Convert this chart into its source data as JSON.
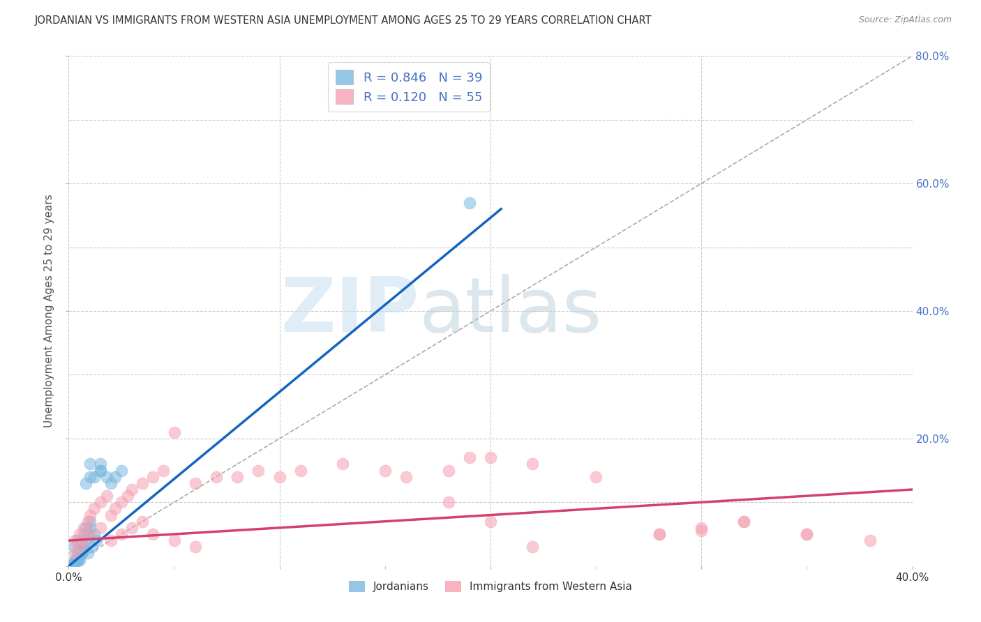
{
  "title": "JORDANIAN VS IMMIGRANTS FROM WESTERN ASIA UNEMPLOYMENT AMONG AGES 25 TO 29 YEARS CORRELATION CHART",
  "source_text": "Source: ZipAtlas.com",
  "ylabel": "Unemployment Among Ages 25 to 29 years",
  "xlim": [
    0.0,
    0.4
  ],
  "ylim": [
    0.0,
    0.8
  ],
  "blue_color": "#7ab8e0",
  "pink_color": "#f5a0b0",
  "blue_line_color": "#1565c0",
  "pink_line_color": "#d44070",
  "diag_color": "#aaaaaa",
  "legend_R_blue": "0.846",
  "legend_N_blue": "39",
  "legend_R_pink": "0.120",
  "legend_N_pink": "55",
  "legend_label_blue": "Jordanians",
  "legend_label_pink": "Immigrants from Western Asia",
  "watermark_zip": "ZIP",
  "watermark_atlas": "atlas",
  "background_color": "#ffffff",
  "grid_color": "#cccccc",
  "title_color": "#333333",
  "axis_label_color": "#4472c4",
  "blue_line_x0": 0.0,
  "blue_line_y0": 0.0,
  "blue_line_x1": 0.205,
  "blue_line_y1": 0.56,
  "pink_line_x0": 0.0,
  "pink_line_y0": 0.04,
  "pink_line_x1": 0.4,
  "pink_line_y1": 0.12,
  "blue_scatter_x": [
    0.003,
    0.004,
    0.005,
    0.006,
    0.007,
    0.008,
    0.009,
    0.01,
    0.011,
    0.012,
    0.013,
    0.003,
    0.004,
    0.005,
    0.006,
    0.007,
    0.008,
    0.009,
    0.01,
    0.003,
    0.004,
    0.005,
    0.006,
    0.007,
    0.003,
    0.004,
    0.008,
    0.01,
    0.015,
    0.018,
    0.02,
    0.022,
    0.025,
    0.01,
    0.012,
    0.015,
    0.003,
    0.015,
    0.19
  ],
  "blue_scatter_y": [
    0.01,
    0.02,
    0.03,
    0.04,
    0.05,
    0.06,
    0.02,
    0.07,
    0.03,
    0.05,
    0.04,
    0.005,
    0.008,
    0.01,
    0.02,
    0.03,
    0.04,
    0.05,
    0.06,
    0.005,
    0.01,
    0.015,
    0.02,
    0.025,
    0.03,
    0.04,
    0.13,
    0.14,
    0.15,
    0.14,
    0.13,
    0.14,
    0.15,
    0.16,
    0.14,
    0.15,
    0.005,
    0.16,
    0.57
  ],
  "pink_scatter_x": [
    0.003,
    0.005,
    0.007,
    0.009,
    0.01,
    0.012,
    0.015,
    0.018,
    0.02,
    0.022,
    0.025,
    0.028,
    0.03,
    0.035,
    0.04,
    0.045,
    0.05,
    0.06,
    0.07,
    0.08,
    0.09,
    0.1,
    0.11,
    0.13,
    0.15,
    0.16,
    0.18,
    0.2,
    0.22,
    0.25,
    0.28,
    0.3,
    0.32,
    0.35,
    0.38,
    0.003,
    0.005,
    0.007,
    0.01,
    0.015,
    0.02,
    0.025,
    0.03,
    0.035,
    0.04,
    0.05,
    0.06,
    0.18,
    0.2,
    0.28,
    0.3,
    0.32,
    0.35,
    0.19,
    0.22
  ],
  "pink_scatter_y": [
    0.04,
    0.05,
    0.06,
    0.07,
    0.08,
    0.09,
    0.1,
    0.11,
    0.08,
    0.09,
    0.1,
    0.11,
    0.12,
    0.13,
    0.14,
    0.15,
    0.21,
    0.13,
    0.14,
    0.14,
    0.15,
    0.14,
    0.15,
    0.16,
    0.15,
    0.14,
    0.15,
    0.17,
    0.16,
    0.14,
    0.05,
    0.06,
    0.07,
    0.05,
    0.04,
    0.02,
    0.03,
    0.04,
    0.05,
    0.06,
    0.04,
    0.05,
    0.06,
    0.07,
    0.05,
    0.04,
    0.03,
    0.1,
    0.07,
    0.05,
    0.055,
    0.07,
    0.05,
    0.17,
    0.03
  ]
}
